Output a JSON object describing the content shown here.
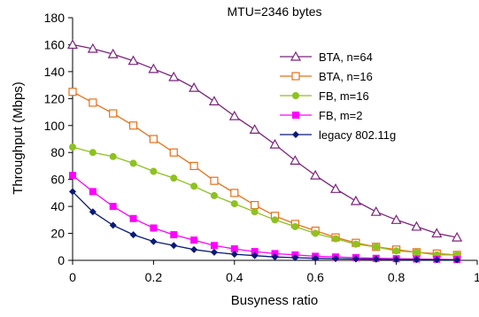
{
  "chart_data": {
    "type": "line",
    "title": "MTU=2346 bytes",
    "xlabel": "Busyness ratio",
    "ylabel": "Throughput (Mbps)",
    "xlim": [
      0,
      1
    ],
    "ylim": [
      0,
      180
    ],
    "xticks": [
      0,
      0.2,
      0.4,
      0.6,
      0.8,
      1
    ],
    "xtick_labels": [
      "0",
      "0.2",
      "0.4",
      "0.6",
      "0.8",
      "1"
    ],
    "yticks": [
      0,
      20,
      40,
      60,
      80,
      100,
      120,
      140,
      160,
      180
    ],
    "ytick_labels": [
      "0",
      "20",
      "40",
      "60",
      "80",
      "100",
      "120",
      "140",
      "160",
      "180"
    ],
    "grid": false,
    "legend_position": "top-right",
    "x": [
      0,
      0.05,
      0.1,
      0.15,
      0.2,
      0.25,
      0.3,
      0.35,
      0.4,
      0.45,
      0.5,
      0.55,
      0.6,
      0.65,
      0.7,
      0.75,
      0.8,
      0.85,
      0.9,
      0.95
    ],
    "series": [
      {
        "name": "BTA, n=64",
        "color": "#7B237B",
        "marker": "triangle-open",
        "values": [
          160,
          157,
          153,
          148,
          142,
          136,
          128,
          118,
          107,
          97,
          86,
          74,
          63,
          53,
          44,
          36,
          30,
          25,
          20,
          17
        ]
      },
      {
        "name": "BTA, n=16",
        "color": "#E8701A",
        "marker": "square-open",
        "values": [
          125,
          117,
          109,
          100,
          90,
          80,
          70,
          59,
          50,
          41,
          33,
          27,
          22,
          17,
          13,
          10,
          8,
          6,
          5,
          4
        ]
      },
      {
        "name": "FB, m=16",
        "color": "#8DC21F",
        "marker": "circle-filled",
        "values": [
          84,
          80,
          77,
          72,
          66,
          61,
          55,
          48,
          42,
          36,
          30,
          25,
          20,
          16,
          12,
          10,
          7,
          6,
          4,
          4
        ]
      },
      {
        "name": "FB, m=2",
        "color": "#FF00FF",
        "marker": "square-filled",
        "values": [
          63,
          51,
          40,
          31,
          24,
          19,
          15,
          11,
          8.5,
          6.5,
          5,
          4,
          3,
          2.5,
          2,
          1.5,
          1.2,
          1,
          0.8,
          0.6
        ]
      },
      {
        "name": "legacy 802.11g",
        "color": "#0A1A78",
        "marker": "diamond-filled",
        "values": [
          51,
          36,
          26,
          19,
          14,
          11,
          8,
          6,
          4.5,
          3.5,
          2.5,
          2,
          1.5,
          1.2,
          1,
          0.8,
          0.6,
          0.5,
          0.4,
          0.3
        ]
      }
    ]
  }
}
